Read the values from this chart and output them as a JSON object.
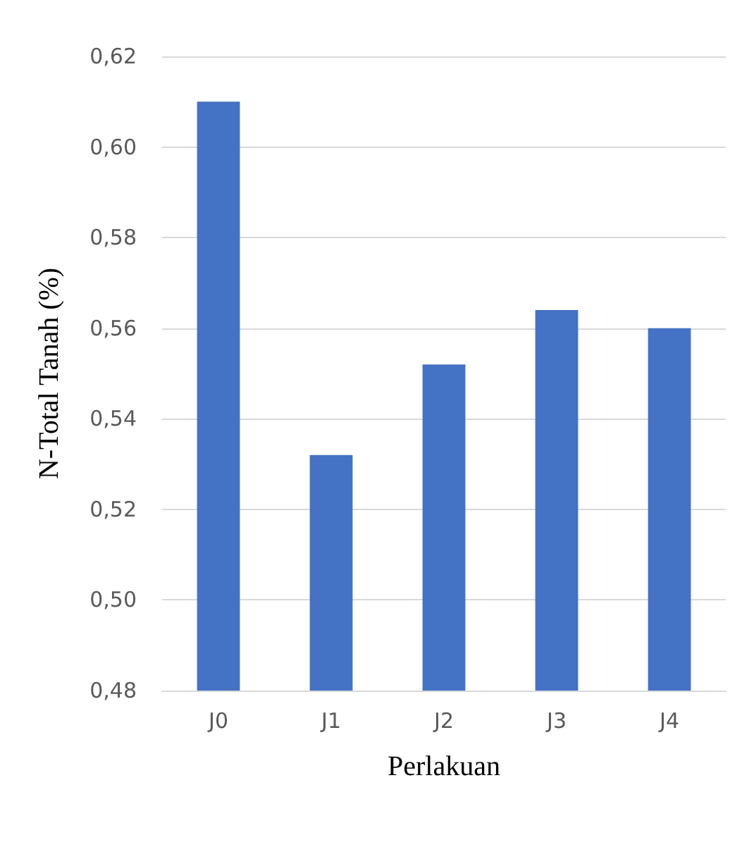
{
  "chart_data": {
    "type": "bar",
    "xlabel": "Perlakuan",
    "ylabel": "N-Total Tanah (%)",
    "categories": [
      "J0",
      "J1",
      "J2",
      "J3",
      "J4"
    ],
    "values": [
      0.61,
      0.532,
      0.552,
      0.564,
      0.56
    ],
    "color": "#4472c4",
    "ylim": [
      0.48,
      0.62
    ],
    "yticks": [
      {
        "value": 0.48,
        "label": "0,48"
      },
      {
        "value": 0.5,
        "label": "0,50"
      },
      {
        "value": 0.52,
        "label": "0,52"
      },
      {
        "value": 0.54,
        "label": "0,54"
      },
      {
        "value": 0.56,
        "label": "0,56"
      },
      {
        "value": 0.58,
        "label": "0,58"
      },
      {
        "value": 0.6,
        "label": "0,60"
      },
      {
        "value": 0.62,
        "label": "0,62"
      }
    ],
    "grid": "y"
  }
}
